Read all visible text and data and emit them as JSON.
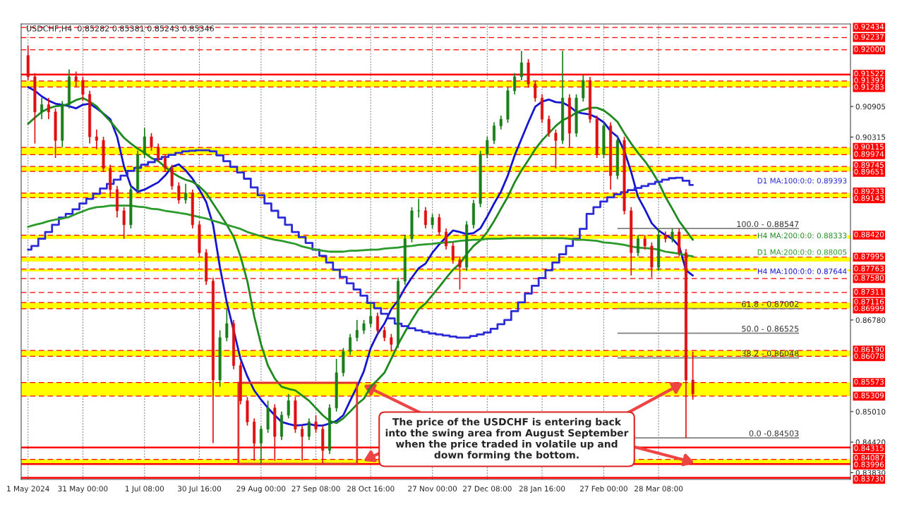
{
  "chart_data": {
    "type": "candlestick",
    "title": "USDCHF,H4  0.85282 0.85381 0.85243 0.85346",
    "categories": [
      "1 May 2024",
      null,
      null,
      null,
      null,
      null,
      null,
      null,
      "31 May 00:00",
      null,
      null,
      null,
      null,
      null,
      null,
      null,
      null,
      "1 Jul 08:00",
      null,
      null,
      null,
      null,
      null,
      null,
      null,
      "30 Jul 16:00",
      null,
      null,
      null,
      null,
      null,
      null,
      null,
      null,
      "29 Aug 00:00",
      null,
      null,
      null,
      null,
      null,
      null,
      null,
      "27 Sep 08:00",
      null,
      null,
      null,
      null,
      null,
      null,
      null,
      "28 Oct 16:00",
      null,
      null,
      null,
      null,
      null,
      null,
      null,
      null,
      "27 Nov 00:00",
      null,
      null,
      null,
      null,
      null,
      null,
      null,
      "27 Dec 08:00",
      null,
      null,
      null,
      null,
      null,
      null,
      null,
      "28 Jan 16:00",
      null,
      null,
      null,
      null,
      null,
      null,
      null,
      null,
      "27 Feb 00:00",
      null,
      null,
      null,
      null,
      null,
      null,
      null,
      "28 Mar 08:00",
      null,
      null,
      null,
      null,
      null
    ],
    "ohlc": [
      [
        0.9189,
        0.9208,
        0.9141,
        0.9148
      ],
      [
        0.9148,
        0.9155,
        0.9019,
        0.908
      ],
      [
        0.908,
        0.9107,
        0.9066,
        0.9094
      ],
      [
        0.9094,
        0.9107,
        0.9066,
        0.908
      ],
      [
        0.908,
        0.9087,
        0.8991,
        0.9025
      ],
      [
        0.9025,
        0.9101,
        0.9012,
        0.9094
      ],
      [
        0.9094,
        0.9162,
        0.9087,
        0.9148
      ],
      [
        0.9148,
        0.9158,
        0.9128,
        0.9141
      ],
      [
        0.9141,
        0.9148,
        0.9101,
        0.9114
      ],
      [
        0.9114,
        0.9121,
        0.9019,
        0.9032
      ],
      [
        0.9032,
        0.9046,
        0.9008,
        0.9025
      ],
      [
        0.9025,
        0.9032,
        0.8964,
        0.8971
      ],
      [
        0.8971,
        0.8978,
        0.8916,
        0.893
      ],
      [
        0.893,
        0.8937,
        0.8876,
        0.8889
      ],
      [
        0.8889,
        0.8896,
        0.8835,
        0.8862
      ],
      [
        0.8862,
        0.8937,
        0.8855,
        0.893
      ],
      [
        0.893,
        0.9005,
        0.8923,
        0.8998
      ],
      [
        0.8998,
        0.9049,
        0.8991,
        0.9032
      ],
      [
        0.9032,
        0.9039,
        0.9005,
        0.9012
      ],
      [
        0.9012,
        0.9019,
        0.8984,
        0.8991
      ],
      [
        0.8991,
        0.8998,
        0.8964,
        0.8971
      ],
      [
        0.8971,
        0.8978,
        0.893,
        0.8937
      ],
      [
        0.8937,
        0.8944,
        0.8903,
        0.891
      ],
      [
        0.891,
        0.8941,
        0.8903,
        0.8923
      ],
      [
        0.8923,
        0.893,
        0.8855,
        0.8862
      ],
      [
        0.8862,
        0.8869,
        0.8801,
        0.8808
      ],
      [
        0.8808,
        0.8815,
        0.8746,
        0.8753
      ],
      [
        0.8753,
        0.876,
        0.844,
        0.8562
      ],
      [
        0.8562,
        0.8658,
        0.8549,
        0.8644
      ],
      [
        0.8644,
        0.8699,
        0.8637,
        0.8671
      ],
      [
        0.8671,
        0.8678,
        0.8583,
        0.859
      ],
      [
        0.859,
        0.8597,
        0.8515,
        0.8522
      ],
      [
        0.8522,
        0.8529,
        0.8474,
        0.8481
      ],
      [
        0.8481,
        0.8488,
        0.8406,
        0.844
      ],
      [
        0.844,
        0.8474,
        0.84,
        0.8467
      ],
      [
        0.8467,
        0.8522,
        0.846,
        0.8508
      ],
      [
        0.8508,
        0.8515,
        0.8406,
        0.8453
      ],
      [
        0.8453,
        0.8501,
        0.8446,
        0.8494
      ],
      [
        0.8494,
        0.8535,
        0.8488,
        0.8522
      ],
      [
        0.8522,
        0.8529,
        0.846,
        0.8467
      ],
      [
        0.8467,
        0.8474,
        0.8406,
        0.8453
      ],
      [
        0.8453,
        0.8488,
        0.8446,
        0.8481
      ],
      [
        0.8481,
        0.8494,
        0.846,
        0.8467
      ],
      [
        0.8467,
        0.8474,
        0.8401,
        0.8426
      ],
      [
        0.8426,
        0.8515,
        0.8419,
        0.8508
      ],
      [
        0.8508,
        0.8603,
        0.8501,
        0.8576
      ],
      [
        0.8576,
        0.8624,
        0.8569,
        0.8617
      ],
      [
        0.8617,
        0.8651,
        0.861,
        0.8644
      ],
      [
        0.8644,
        0.8678,
        0.8637,
        0.8658
      ],
      [
        0.8658,
        0.8678,
        0.8651,
        0.8671
      ],
      [
        0.8671,
        0.8712,
        0.8664,
        0.8685
      ],
      [
        0.8685,
        0.8692,
        0.8651,
        0.8658
      ],
      [
        0.8658,
        0.8665,
        0.8637,
        0.8644
      ],
      [
        0.8644,
        0.8651,
        0.8617,
        0.8631
      ],
      [
        0.8631,
        0.876,
        0.8624,
        0.8753
      ],
      [
        0.8753,
        0.8842,
        0.8746,
        0.8835
      ],
      [
        0.8835,
        0.8896,
        0.8828,
        0.8889
      ],
      [
        0.8889,
        0.8912,
        0.8876,
        0.8889
      ],
      [
        0.8889,
        0.8896,
        0.8855,
        0.8862
      ],
      [
        0.8862,
        0.8883,
        0.8855,
        0.8876
      ],
      [
        0.8876,
        0.8883,
        0.8841,
        0.8848
      ],
      [
        0.8848,
        0.8855,
        0.8814,
        0.8821
      ],
      [
        0.8821,
        0.8828,
        0.8787,
        0.8794
      ],
      [
        0.8794,
        0.8801,
        0.8737,
        0.878
      ],
      [
        0.878,
        0.8869,
        0.8773,
        0.8862
      ],
      [
        0.8862,
        0.891,
        0.8855,
        0.8903
      ],
      [
        0.8903,
        0.9005,
        0.8896,
        0.8998
      ],
      [
        0.8998,
        0.9032,
        0.8991,
        0.9025
      ],
      [
        0.9025,
        0.906,
        0.9018,
        0.9053
      ],
      [
        0.9053,
        0.9073,
        0.9046,
        0.9066
      ],
      [
        0.9066,
        0.9128,
        0.9059,
        0.9121
      ],
      [
        0.9121,
        0.9155,
        0.9114,
        0.9148
      ],
      [
        0.9148,
        0.9198,
        0.9141,
        0.9175
      ],
      [
        0.9175,
        0.9182,
        0.9127,
        0.9134
      ],
      [
        0.9134,
        0.9141,
        0.91,
        0.9107
      ],
      [
        0.9107,
        0.9114,
        0.9059,
        0.9066
      ],
      [
        0.9066,
        0.9073,
        0.9032,
        0.9039
      ],
      [
        0.9039,
        0.9046,
        0.8971,
        0.9025
      ],
      [
        0.9025,
        0.9198,
        0.9018,
        0.9107
      ],
      [
        0.9107,
        0.9114,
        0.9012,
        0.9039
      ],
      [
        0.9039,
        0.9114,
        0.9032,
        0.9107
      ],
      [
        0.9107,
        0.9151,
        0.91,
        0.9141
      ],
      [
        0.9141,
        0.9148,
        0.9059,
        0.9066
      ],
      [
        0.9066,
        0.9073,
        0.8991,
        0.8998
      ],
      [
        0.8998,
        0.906,
        0.8991,
        0.9053
      ],
      [
        0.9053,
        0.906,
        0.893,
        0.8957
      ],
      [
        0.8957,
        0.9035,
        0.895,
        0.9025
      ],
      [
        0.9025,
        0.9032,
        0.8882,
        0.8889
      ],
      [
        0.8889,
        0.8896,
        0.8764,
        0.8808
      ],
      [
        0.8808,
        0.8842,
        0.8801,
        0.8835
      ],
      [
        0.8835,
        0.8842,
        0.8814,
        0.8821
      ],
      [
        0.8821,
        0.8828,
        0.876,
        0.878
      ],
      [
        0.878,
        0.8855,
        0.8773,
        0.8842
      ],
      [
        0.8842,
        0.8849,
        0.8828,
        0.8835
      ],
      [
        0.8835,
        0.8855,
        0.8828,
        0.8848
      ],
      [
        0.8848,
        0.8855,
        0.8801,
        0.8808
      ],
      [
        0.8808,
        0.8815,
        0.845,
        0.8562
      ],
      [
        0.8562,
        0.8617,
        0.8524,
        0.8535
      ]
    ],
    "series": [
      {
        "type": "line",
        "name": "H4 MA:100:0:0: 0.87644",
        "color": "#1515d0",
        "values": [
          0.9128,
          0.9121,
          0.911,
          0.9102,
          0.9096,
          0.9094,
          0.9091,
          0.9087,
          0.9094,
          0.9096,
          0.9087,
          0.9077,
          0.9066,
          0.9032,
          0.8975,
          0.8937,
          0.8926,
          0.893,
          0.8937,
          0.8944,
          0.8957,
          0.8974,
          0.8979,
          0.8967,
          0.8951,
          0.893,
          0.8906,
          0.8862,
          0.878,
          0.8712,
          0.8658,
          0.8603,
          0.8569,
          0.8542,
          0.8524,
          0.8508,
          0.8494,
          0.8481,
          0.8477,
          0.8474,
          0.8475,
          0.8477,
          0.8474,
          0.8474,
          0.8478,
          0.8483,
          0.8494,
          0.8522,
          0.8549,
          0.8579,
          0.8624,
          0.8651,
          0.8671,
          0.8699,
          0.8716,
          0.874,
          0.876,
          0.8778,
          0.8787,
          0.8808,
          0.8824,
          0.8838,
          0.8851,
          0.8848,
          0.8844,
          0.8846,
          0.8855,
          0.8878,
          0.8903,
          0.8926,
          0.8957,
          0.8996,
          0.9028,
          0.906,
          0.909,
          0.91,
          0.9104,
          0.9099,
          0.9098,
          0.9091,
          0.908,
          0.9077,
          0.9075,
          0.9069,
          0.906,
          0.9043,
          0.9032,
          0.9005,
          0.8964,
          0.8916,
          0.8892,
          0.8865,
          0.8851,
          0.8842,
          0.8835,
          0.8821,
          0.8774,
          0.8764
        ]
      },
      {
        "type": "line",
        "name": "H4 MA:200:0:0: 0.88333",
        "color": "#1e8a1e",
        "values": [
          0.9057,
          0.9069,
          0.908,
          0.9087,
          0.9091,
          0.9092,
          0.9096,
          0.9103,
          0.9107,
          0.91,
          0.9091,
          0.9076,
          0.9062,
          0.9046,
          0.903,
          0.9019,
          0.9009,
          0.9001,
          0.8991,
          0.8985,
          0.8974,
          0.8963,
          0.8955,
          0.8949,
          0.8945,
          0.8936,
          0.8923,
          0.8903,
          0.8883,
          0.8862,
          0.8839,
          0.8801,
          0.8753,
          0.8685,
          0.8631,
          0.859,
          0.8565,
          0.8549,
          0.8545,
          0.8542,
          0.8532,
          0.8522,
          0.8508,
          0.8494,
          0.8483,
          0.8479,
          0.8488,
          0.8501,
          0.8515,
          0.8526,
          0.8549,
          0.8562,
          0.8576,
          0.8603,
          0.8631,
          0.8655,
          0.8678,
          0.8699,
          0.871,
          0.8726,
          0.8742,
          0.8759,
          0.8775,
          0.8787,
          0.8805,
          0.8821,
          0.8832,
          0.8848,
          0.8869,
          0.8893,
          0.8916,
          0.8944,
          0.8967,
          0.8987,
          0.9008,
          0.9025,
          0.9039,
          0.9053,
          0.9064,
          0.907,
          0.9079,
          0.9084,
          0.9088,
          0.9088,
          0.9083,
          0.9073,
          0.9061,
          0.9039,
          0.9019,
          0.9001,
          0.8985,
          0.8966,
          0.8944,
          0.8916,
          0.8893,
          0.8869,
          0.8851,
          0.8833
        ]
      },
      {
        "type": "step",
        "name": "D1 MA:100:0:0: 0.89393",
        "color": "#2a2ad8",
        "values": [
          0.8814,
          0.8821,
          0.8835,
          0.8848,
          0.8862,
          0.8876,
          0.8883,
          0.8892,
          0.8903,
          0.8912,
          0.8922,
          0.8932,
          0.8941,
          0.8949,
          0.8957,
          0.8966,
          0.8972,
          0.8978,
          0.8983,
          0.8989,
          0.8993,
          0.8997,
          0.9001,
          0.9004,
          0.9005,
          0.9006,
          0.9006,
          0.9004,
          0.8996,
          0.8985,
          0.8974,
          0.8963,
          0.8951,
          0.8934,
          0.8919,
          0.8903,
          0.8889,
          0.8876,
          0.8862,
          0.8848,
          0.8838,
          0.8827,
          0.8814,
          0.8802,
          0.8789,
          0.8775,
          0.8761,
          0.8749,
          0.8737,
          0.8725,
          0.8711,
          0.8701,
          0.869,
          0.8681,
          0.8671,
          0.8666,
          0.8662,
          0.8658,
          0.8655,
          0.8652,
          0.865,
          0.8648,
          0.8646,
          0.8644,
          0.8644,
          0.8647,
          0.865,
          0.8654,
          0.8661,
          0.867,
          0.8678,
          0.8695,
          0.8712,
          0.8729,
          0.8744,
          0.8759,
          0.8774,
          0.8789,
          0.8805,
          0.8821,
          0.8835,
          0.8854,
          0.8883,
          0.8896,
          0.8907,
          0.8915,
          0.8921,
          0.8925,
          0.8929,
          0.8933,
          0.8937,
          0.8941,
          0.8945,
          0.8949,
          0.8952,
          0.8953,
          0.8947,
          0.8939
        ]
      },
      {
        "type": "line",
        "name": "D1 MA:200:0:0: 0.88005",
        "color": "#2a9a2a",
        "values": [
          0.8858,
          0.8862,
          0.8865,
          0.8869,
          0.8872,
          0.8874,
          0.8877,
          0.8883,
          0.8888,
          0.8893,
          0.8896,
          0.8897,
          0.8899,
          0.8899,
          0.8899,
          0.8899,
          0.8897,
          0.8896,
          0.8893,
          0.8892,
          0.8889,
          0.8887,
          0.8885,
          0.8883,
          0.888,
          0.8877,
          0.8874,
          0.887,
          0.8866,
          0.8862,
          0.8858,
          0.8854,
          0.8848,
          0.8844,
          0.884,
          0.8836,
          0.8833,
          0.8831,
          0.8828,
          0.8825,
          0.882,
          0.8817,
          0.8814,
          0.8812,
          0.881,
          0.881,
          0.881,
          0.8812,
          0.8812,
          0.8813,
          0.8814,
          0.8814,
          0.8816,
          0.8817,
          0.8818,
          0.882,
          0.8821,
          0.8823,
          0.8824,
          0.8825,
          0.8827,
          0.8828,
          0.8829,
          0.8831,
          0.8832,
          0.8833,
          0.8833,
          0.8835,
          0.8835,
          0.8835,
          0.8836,
          0.8836,
          0.8836,
          0.8836,
          0.8836,
          0.8836,
          0.8836,
          0.8836,
          0.8836,
          0.8835,
          0.8833,
          0.8833,
          0.8832,
          0.8831,
          0.8828,
          0.8827,
          0.8825,
          0.8823,
          0.882,
          0.8818,
          0.8817,
          0.8816,
          0.8814,
          0.881,
          0.8808,
          0.8806,
          0.8803,
          0.8801
        ]
      }
    ],
    "ylim": [
      0.837,
      0.925
    ],
    "yticks": [
      0.90905,
      0.90315,
      {
        "value": 0.8678,
        "label": "0.86780"
      },
      {
        "value": 0.8501,
        "label": "0.85010"
      },
      {
        "value": 0.8442,
        "label": "0.84420"
      },
      {
        "value": 0.8383,
        "label": "0.83830"
      }
    ],
    "bands": [
      {
        "axis": "y",
        "from": 0.91283,
        "to": 0.91397,
        "color": "#ffff00"
      },
      {
        "axis": "y",
        "from": 0.89974,
        "to": 0.90115,
        "color": "#ffff00"
      },
      {
        "axis": "y",
        "from": 0.89651,
        "to": 0.89745,
        "color": "#ffff00"
      },
      {
        "axis": "y",
        "from": 0.89143,
        "to": 0.89233,
        "color": "#ffff00"
      },
      {
        "axis": "y",
        "from": 0.8835,
        "to": 0.8842,
        "color": "#ffff00"
      },
      {
        "axis": "y",
        "from": 0.8791,
        "to": 0.87995,
        "color": "#ffff00"
      },
      {
        "axis": "y",
        "from": 0.8772,
        "to": 0.87763,
        "color": "#ffff00"
      },
      {
        "axis": "y",
        "from": 0.86999,
        "to": 0.87116,
        "color": "#ffff00"
      },
      {
        "axis": "y",
        "from": 0.86078,
        "to": 0.8619,
        "color": "#ffff00"
      },
      {
        "axis": "y",
        "from": 0.85309,
        "to": 0.85573,
        "color": "#ffff00"
      },
      {
        "axis": "y",
        "from": 0.83996,
        "to": 0.84087,
        "color": "#ffff00"
      }
    ],
    "ref_lines": [
      {
        "axis": "y",
        "value": 0.92434,
        "label": "0.92434",
        "color": "#ff0000",
        "line_style": "dashed"
      },
      {
        "axis": "y",
        "value": 0.92237,
        "label": "0.92237",
        "color": "#ff0000",
        "line_style": "dashed"
      },
      {
        "axis": "y",
        "value": 0.92,
        "label": "0.92000",
        "color": "#ff0000",
        "line_style": "dashed"
      },
      {
        "axis": "y",
        "value": 0.91522,
        "label": "0.91522",
        "color": "#ff0000",
        "line_style": "solid"
      },
      {
        "axis": "y",
        "value": 0.91397,
        "label": "0.91397",
        "color": "#ff0000",
        "line_style": "dashed"
      },
      {
        "axis": "y",
        "value": 0.91283,
        "label": "0.91283",
        "color": "#ff0000",
        "line_style": "dashed"
      },
      {
        "axis": "y",
        "value": 0.90115,
        "label": "0.90115",
        "color": "#ff0000",
        "line_style": "dashed"
      },
      {
        "axis": "y",
        "value": 0.89974,
        "label": "0.89974",
        "color": "#ff0000",
        "line_style": "dashed"
      },
      {
        "axis": "y",
        "value": 0.89745,
        "label": "0.89745",
        "color": "#ff0000",
        "line_style": "dashed"
      },
      {
        "axis": "y",
        "value": 0.89651,
        "label": "0.89651",
        "color": "#ff0000",
        "line_style": "dashed"
      },
      {
        "axis": "y",
        "value": 0.89233,
        "label": "0.89233",
        "color": "#ff0000",
        "line_style": "dashed"
      },
      {
        "axis": "y",
        "value": 0.89143,
        "label": "0.89143",
        "color": "#ff0000",
        "line_style": "dashed"
      },
      {
        "axis": "y",
        "value": 0.8842,
        "label": "0.88420",
        "color": "#ff0000",
        "line_style": "dashed"
      },
      {
        "axis": "y",
        "value": 0.87995,
        "label": "0.87995",
        "color": "#ff0000",
        "line_style": "dashed"
      },
      {
        "axis": "y",
        "value": 0.87763,
        "label": "0.87763",
        "color": "#ff0000",
        "line_style": "dashed"
      },
      {
        "axis": "y",
        "value": 0.8758,
        "label": "0.87580",
        "color": "#ff0000",
        "line_style": "dashed"
      },
      {
        "axis": "y",
        "value": 0.87311,
        "label": "0.87311",
        "color": "#ff0000",
        "line_style": "dashed"
      },
      {
        "axis": "y",
        "value": 0.87116,
        "label": "0.87116",
        "color": "#ff0000",
        "line_style": "dashed"
      },
      {
        "axis": "y",
        "value": 0.86999,
        "label": "0.86999",
        "color": "#ff0000",
        "line_style": "dashed"
      },
      {
        "axis": "y",
        "value": 0.8619,
        "label": "0.86190",
        "color": "#ff0000",
        "line_style": "dashed"
      },
      {
        "axis": "y",
        "value": 0.86078,
        "label": "0.86078",
        "color": "#ff0000",
        "line_style": "dashed"
      },
      {
        "axis": "y",
        "value": 0.85573,
        "label": "0.85573",
        "color": "#ff0000",
        "line_style": "dashed"
      },
      {
        "axis": "y",
        "value": 0.85309,
        "label": "0.85309",
        "color": "#ff0000",
        "line_style": "dashed"
      },
      {
        "axis": "y",
        "value": 0.84315,
        "label": "0.84315",
        "color": "#ff0000",
        "line_style": "solid"
      },
      {
        "axis": "y",
        "value": 0.84087,
        "label": "0.84087",
        "color": "#ff0000",
        "line_style": "dashed"
      },
      {
        "axis": "y",
        "value": 0.83996,
        "label": "0.83996",
        "color": "#ff0000",
        "line_style": "solid"
      },
      {
        "axis": "y",
        "value": 0.8373,
        "label": "0.83730",
        "color": "#ff0000",
        "line_style": "solid"
      },
      {
        "axis": "y",
        "value": 0.88547,
        "color": "#808080",
        "line_style": "solid"
      },
      {
        "axis": "y",
        "value": 0.87002,
        "color": "#808080",
        "line_style": "solid"
      },
      {
        "axis": "y",
        "value": 0.86525,
        "color": "#808080",
        "line_style": "solid"
      },
      {
        "axis": "y",
        "value": 0.86048,
        "color": "#808080",
        "line_style": "solid"
      },
      {
        "axis": "y",
        "value": 0.84503,
        "color": "#808080",
        "line_style": "solid"
      }
    ],
    "annotations": [
      "100.0 - 0.88547",
      "61.8 - 0.87002",
      "50.0 - 0.86525",
      "38.2 - 0.86048",
      "0.0 -0.84503",
      "The price of the USDCHF is entering back into the swing area from August September when the price traded in volatile up and down forming the bottom."
    ],
    "grid": "x"
  }
}
